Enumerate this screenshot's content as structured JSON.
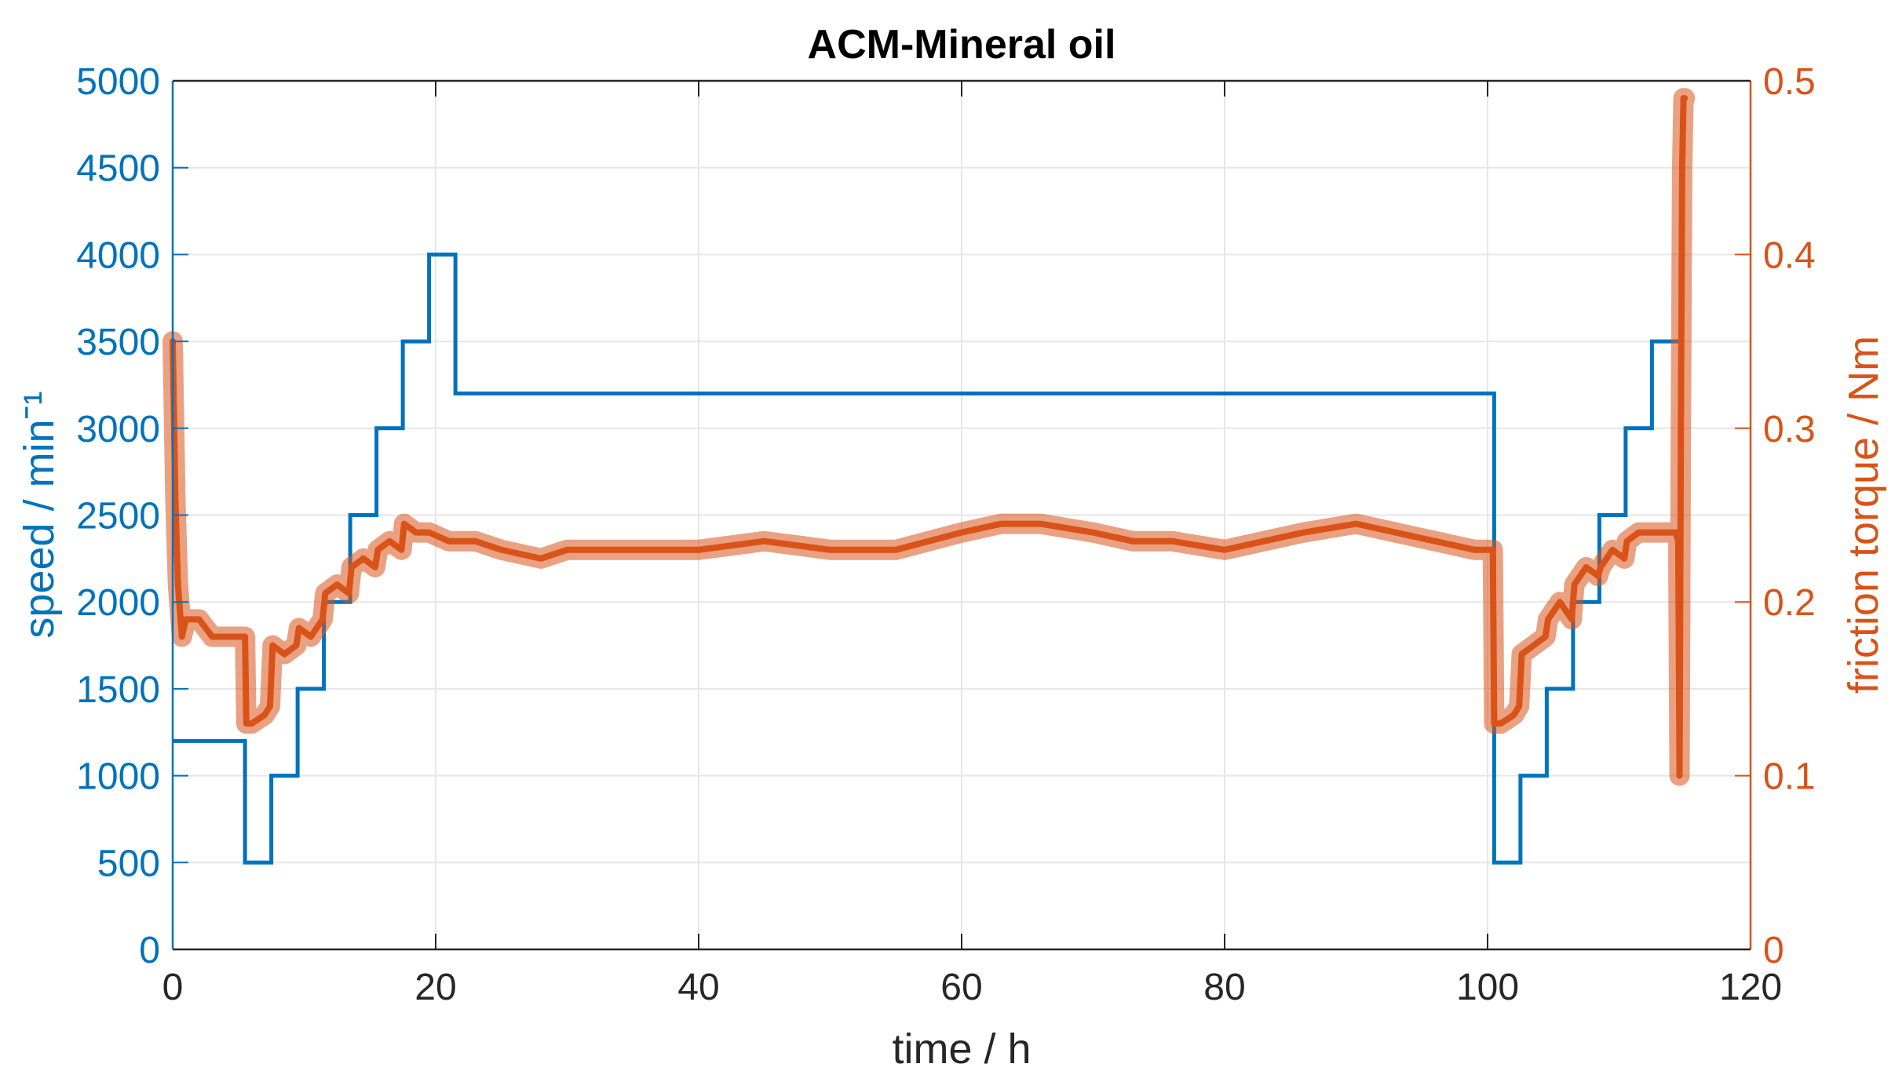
{
  "chart_data": {
    "type": "line",
    "title": "ACM-Mineral oil",
    "xlabel": "time / h",
    "ylabel_left": "speed / minˉ¹",
    "ylabel_right": "friction torque / Nm",
    "xlim": [
      0,
      120
    ],
    "ylim_left": [
      0,
      5000
    ],
    "ylim_right": [
      0,
      0.5
    ],
    "xticks": [
      "0",
      "20",
      "40",
      "60",
      "80",
      "100",
      "120"
    ],
    "yticks_left": [
      "0",
      "500",
      "1000",
      "1500",
      "2000",
      "2500",
      "3000",
      "3500",
      "4000",
      "4500",
      "5000"
    ],
    "yticks_right": [
      "0",
      "0.1",
      "0.2",
      "0.3",
      "0.4",
      "0.5"
    ],
    "grid": true,
    "colors": {
      "speed": "#0072BD",
      "torque": "#D95319",
      "axis": "#262626",
      "grid": "#e6e6e6"
    },
    "series": [
      {
        "axis": "left",
        "step": true,
        "x": [
          0,
          5.5,
          7.5,
          9.5,
          11.5,
          13.5,
          15.5,
          17.5,
          19.5,
          21.5,
          100.5,
          102.5,
          104.5,
          106.5,
          108.5,
          110.5,
          112.5,
          114.7,
          115
        ],
        "values": [
          1200,
          500,
          1000,
          1500,
          2000,
          2500,
          3000,
          3500,
          4000,
          3200,
          500,
          1000,
          1500,
          2000,
          2500,
          3000,
          3500,
          4000,
          4000
        ]
      },
      {
        "axis": "right",
        "x": [
          0,
          0.2,
          0.4,
          0.7,
          1,
          2,
          3,
          4,
          5,
          5.5,
          5.6,
          6,
          7,
          7.4,
          7.6,
          8.5,
          9.4,
          9.6,
          10.5,
          11.4,
          11.6,
          12.5,
          13.4,
          13.6,
          14.5,
          15.4,
          15.6,
          16.5,
          17.4,
          17.6,
          18.5,
          19.5,
          21,
          23,
          25,
          28,
          30,
          35,
          40,
          45,
          50,
          55,
          60,
          63,
          66,
          70,
          73,
          76,
          80,
          83,
          86,
          90,
          93,
          96,
          99,
          100.4,
          100.5,
          101,
          102,
          102.4,
          102.6,
          103.5,
          104.4,
          104.6,
          105.5,
          106.4,
          106.6,
          107.5,
          108.4,
          108.6,
          109.5,
          110.4,
          110.6,
          111.5,
          112.5,
          113.5,
          114.3,
          114.5,
          114.6,
          114.7,
          114.8,
          114.9,
          115
        ],
        "values": [
          0.35,
          0.26,
          0.21,
          0.18,
          0.19,
          0.19,
          0.18,
          0.18,
          0.18,
          0.18,
          0.13,
          0.13,
          0.135,
          0.14,
          0.175,
          0.17,
          0.175,
          0.185,
          0.18,
          0.19,
          0.205,
          0.21,
          0.205,
          0.22,
          0.225,
          0.22,
          0.23,
          0.235,
          0.23,
          0.245,
          0.24,
          0.24,
          0.235,
          0.235,
          0.23,
          0.225,
          0.23,
          0.23,
          0.23,
          0.235,
          0.23,
          0.23,
          0.24,
          0.245,
          0.245,
          0.24,
          0.235,
          0.235,
          0.23,
          0.235,
          0.24,
          0.245,
          0.24,
          0.235,
          0.23,
          0.23,
          0.13,
          0.13,
          0.135,
          0.14,
          0.17,
          0.175,
          0.18,
          0.19,
          0.2,
          0.19,
          0.21,
          0.22,
          0.215,
          0.22,
          0.23,
          0.225,
          0.235,
          0.24,
          0.24,
          0.24,
          0.24,
          0.235,
          0.1,
          0.3,
          0.45,
          0.49,
          0.49
        ]
      }
    ]
  }
}
